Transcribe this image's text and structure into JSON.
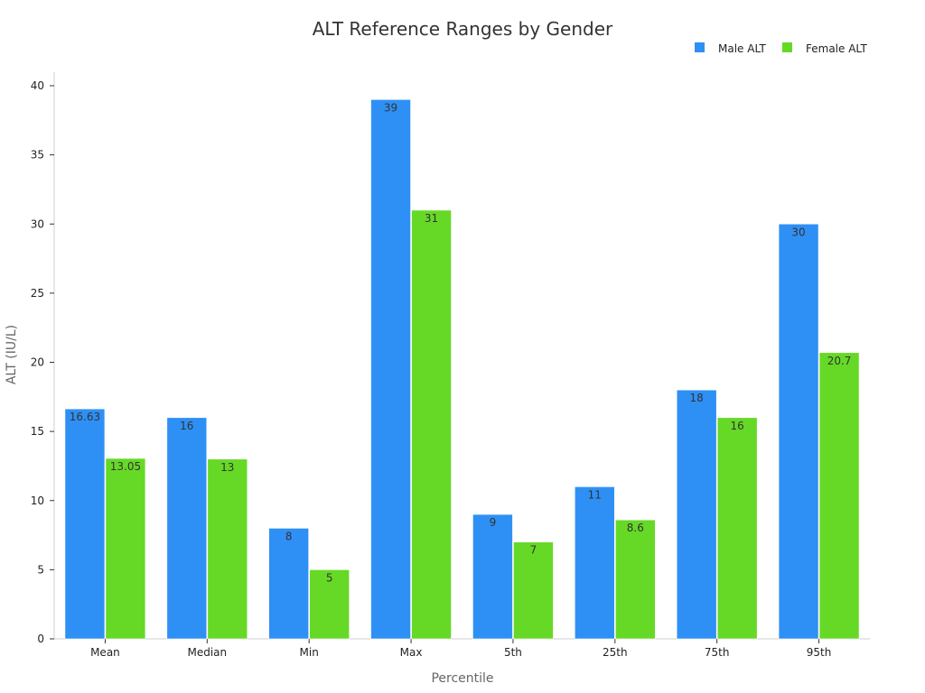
{
  "chart_data": {
    "type": "bar",
    "title": "ALT Reference Ranges by Gender",
    "xlabel": "Percentile",
    "ylabel": "ALT (IU/L)",
    "categories": [
      "Mean",
      "Median",
      "Min",
      "Max",
      "5th",
      "25th",
      "75th",
      "95th"
    ],
    "series": [
      {
        "name": "Male ALT",
        "color": "#2e90f5",
        "values": [
          16.63,
          16,
          8,
          39,
          9,
          11,
          18,
          30
        ]
      },
      {
        "name": "Female ALT",
        "color": "#66d926",
        "values": [
          13.05,
          13,
          5,
          31,
          7,
          8.6,
          16,
          20.7
        ]
      }
    ],
    "ylim": [
      0,
      40
    ],
    "yticks": [
      0,
      5,
      10,
      15,
      20,
      25,
      30,
      35,
      40
    ],
    "grid": false,
    "legend_position": "top-right"
  }
}
